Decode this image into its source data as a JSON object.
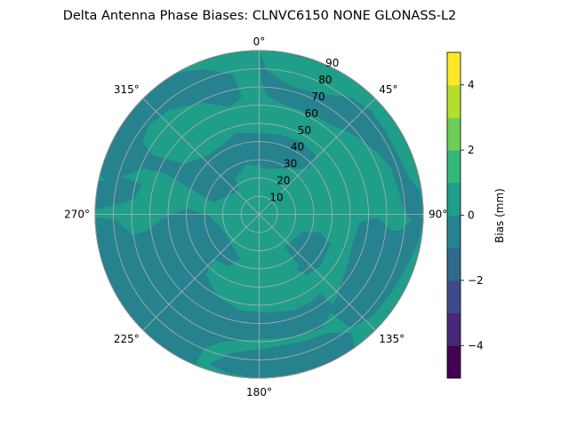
{
  "chart_data": {
    "type": "heatmap",
    "title": "Delta Antenna Phase Biases: CLNVC6150       NONE GLONASS-L2",
    "projection": "polar",
    "theta_zero_location": "N",
    "theta_direction": "clockwise",
    "azimuth_labels": [
      "0°",
      "45°",
      "90°",
      "135°",
      "180°",
      "225°",
      "270°",
      "315°"
    ],
    "azimuth_values": [
      0,
      45,
      90,
      135,
      180,
      225,
      270,
      315
    ],
    "radial_ticks": [
      10,
      20,
      30,
      40,
      50,
      60,
      70,
      80,
      90
    ],
    "radial_tick_labels": [
      "10",
      "20",
      "30",
      "40",
      "50",
      "60",
      "70",
      "80",
      "90"
    ],
    "rlim": [
      0,
      90
    ],
    "grid": true,
    "colorbar": {
      "label": "Bias (mm)",
      "vmin": -5,
      "vmax": 5,
      "levels": [
        -5,
        -4,
        -3,
        -2,
        -1,
        0,
        1,
        2,
        3,
        4,
        5
      ],
      "ticks": [
        -4,
        -2,
        0,
        2,
        4
      ],
      "tick_labels": [
        "−4",
        "−2",
        "0",
        "2",
        "4"
      ],
      "colors": [
        "#440154",
        "#482878",
        "#3e4989",
        "#31688e",
        "#26828e",
        "#1f9e89",
        "#35b779",
        "#6ece58",
        "#b5de2b",
        "#fde725"
      ]
    },
    "field": {
      "dominant_band": "0 to 1 mm",
      "secondary_band": "-1 to 0 mm",
      "bands_present": [
        "-1 to 0 mm",
        "0 to 1 mm"
      ]
    }
  }
}
